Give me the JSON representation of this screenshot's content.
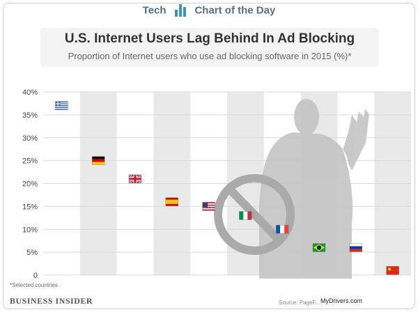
{
  "header": {
    "left_label": "Tech",
    "right_label": "Chart of the Day",
    "title": "U.S. Internet Users Lag Behind In Ad Blocking",
    "subtitle": "Proportion of Internet users who use ad blocking software in 2015 (%)*"
  },
  "footer": {
    "footnote": "*Selected countries",
    "brand": "BUSINESS INSIDER",
    "source": "Source: PageF...",
    "watermark": "MyDrivers.com"
  },
  "colors": {
    "band": "#e9e9e9",
    "grid": "#d9d9d9",
    "axis_text": "#444444",
    "silhouette": "#c4c4c4"
  },
  "chart_data": {
    "type": "scatter",
    "title": "U.S. Internet Users Lag Behind In Ad Blocking",
    "subtitle": "Proportion of Internet users who use ad blocking software in 2015 (%)*",
    "xlabel": "",
    "ylabel": "",
    "ylim": [
      0,
      40
    ],
    "yticks": [
      "0",
      "5%",
      "10%",
      "15%",
      "20%",
      "25%",
      "30%",
      "35%",
      "40%"
    ],
    "grid": true,
    "markers": "country flags",
    "points": [
      {
        "flag": "greece",
        "y": 37
      },
      {
        "flag": "germany",
        "y": 25
      },
      {
        "flag": "uk",
        "y": 21
      },
      {
        "flag": "spain",
        "y": 16
      },
      {
        "flag": "usa",
        "y": 15
      },
      {
        "flag": "italy",
        "y": 13
      },
      {
        "flag": "france",
        "y": 10
      },
      {
        "flag": "brazil",
        "y": 6
      },
      {
        "flag": "russia",
        "y": 6
      },
      {
        "flag": "china",
        "y": 1
      }
    ]
  }
}
